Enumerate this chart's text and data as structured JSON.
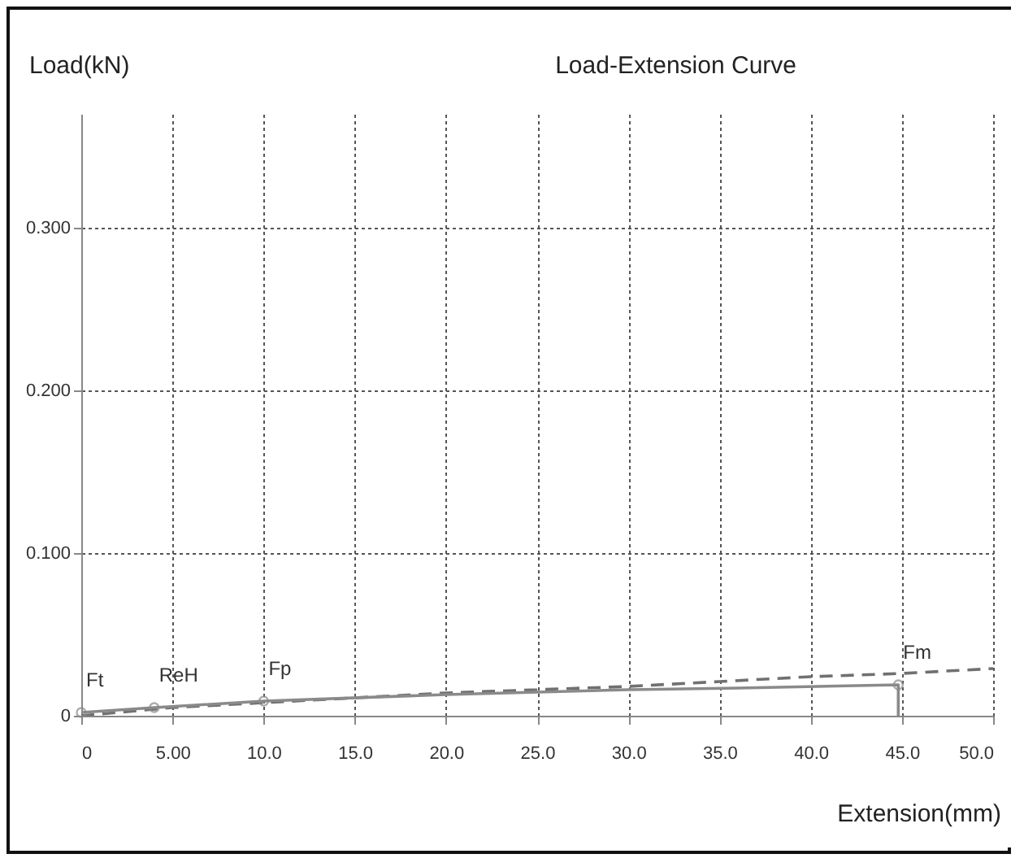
{
  "chart_data": {
    "type": "line",
    "title": "Load-Extension Curve",
    "xlabel": "Extension(mm)",
    "ylabel": "Load(kN)",
    "xlim": [
      0,
      50
    ],
    "ylim": [
      0,
      0.37
    ],
    "xticks": [
      0,
      {
        "value": 5,
        "label": "5.00"
      },
      {
        "value": 10,
        "label": "10.0"
      },
      {
        "value": 15,
        "label": "15.0"
      },
      {
        "value": 20,
        "label": "20.0"
      },
      {
        "value": 25,
        "label": "25.0"
      },
      {
        "value": 30,
        "label": "30.0"
      },
      {
        "value": 35,
        "label": "35.0"
      },
      {
        "value": 40,
        "label": "40.0"
      },
      {
        "value": 45,
        "label": "45.0"
      },
      {
        "value": 50,
        "label": "50.0"
      }
    ],
    "yticks": [
      0,
      {
        "value": 0.1,
        "label": "0.100"
      },
      {
        "value": 0.2,
        "label": "0.200"
      },
      {
        "value": 0.3,
        "label": "0.300"
      }
    ],
    "grid": true,
    "series": [
      {
        "color": "#707070",
        "line_style": "dashed",
        "x": [
          0,
          5,
          10,
          15,
          20,
          25,
          30,
          35,
          40,
          45,
          50
        ],
        "values": [
          0,
          0.005,
          0.008,
          0.011,
          0.014,
          0.016,
          0.018,
          0.021,
          0.024,
          0.026,
          0.029
        ]
      },
      {
        "color": "#8a8a8a",
        "line_style": "solid",
        "x": [
          0,
          4,
          10,
          20,
          30,
          36,
          44.8,
          44.8
        ],
        "values": [
          0.002,
          0.005,
          0.009,
          0.013,
          0.016,
          0.017,
          0.019,
          0
        ]
      },
      {
        "type": "scatter",
        "color": "#8a8a8a",
        "marker": "circle",
        "x": [
          0,
          4,
          10,
          44.8
        ],
        "values": [
          0.002,
          0.005,
          0.009,
          0.019
        ]
      }
    ],
    "annotations": [
      {
        "text": "Ft",
        "x": 0,
        "y": 0.002
      },
      {
        "text": "ReH",
        "x": 4,
        "y": 0.005
      },
      {
        "text": "Fp",
        "x": 10,
        "y": 0.009
      },
      {
        "text": "Fm",
        "x": 44.8,
        "y": 0.019
      }
    ]
  }
}
